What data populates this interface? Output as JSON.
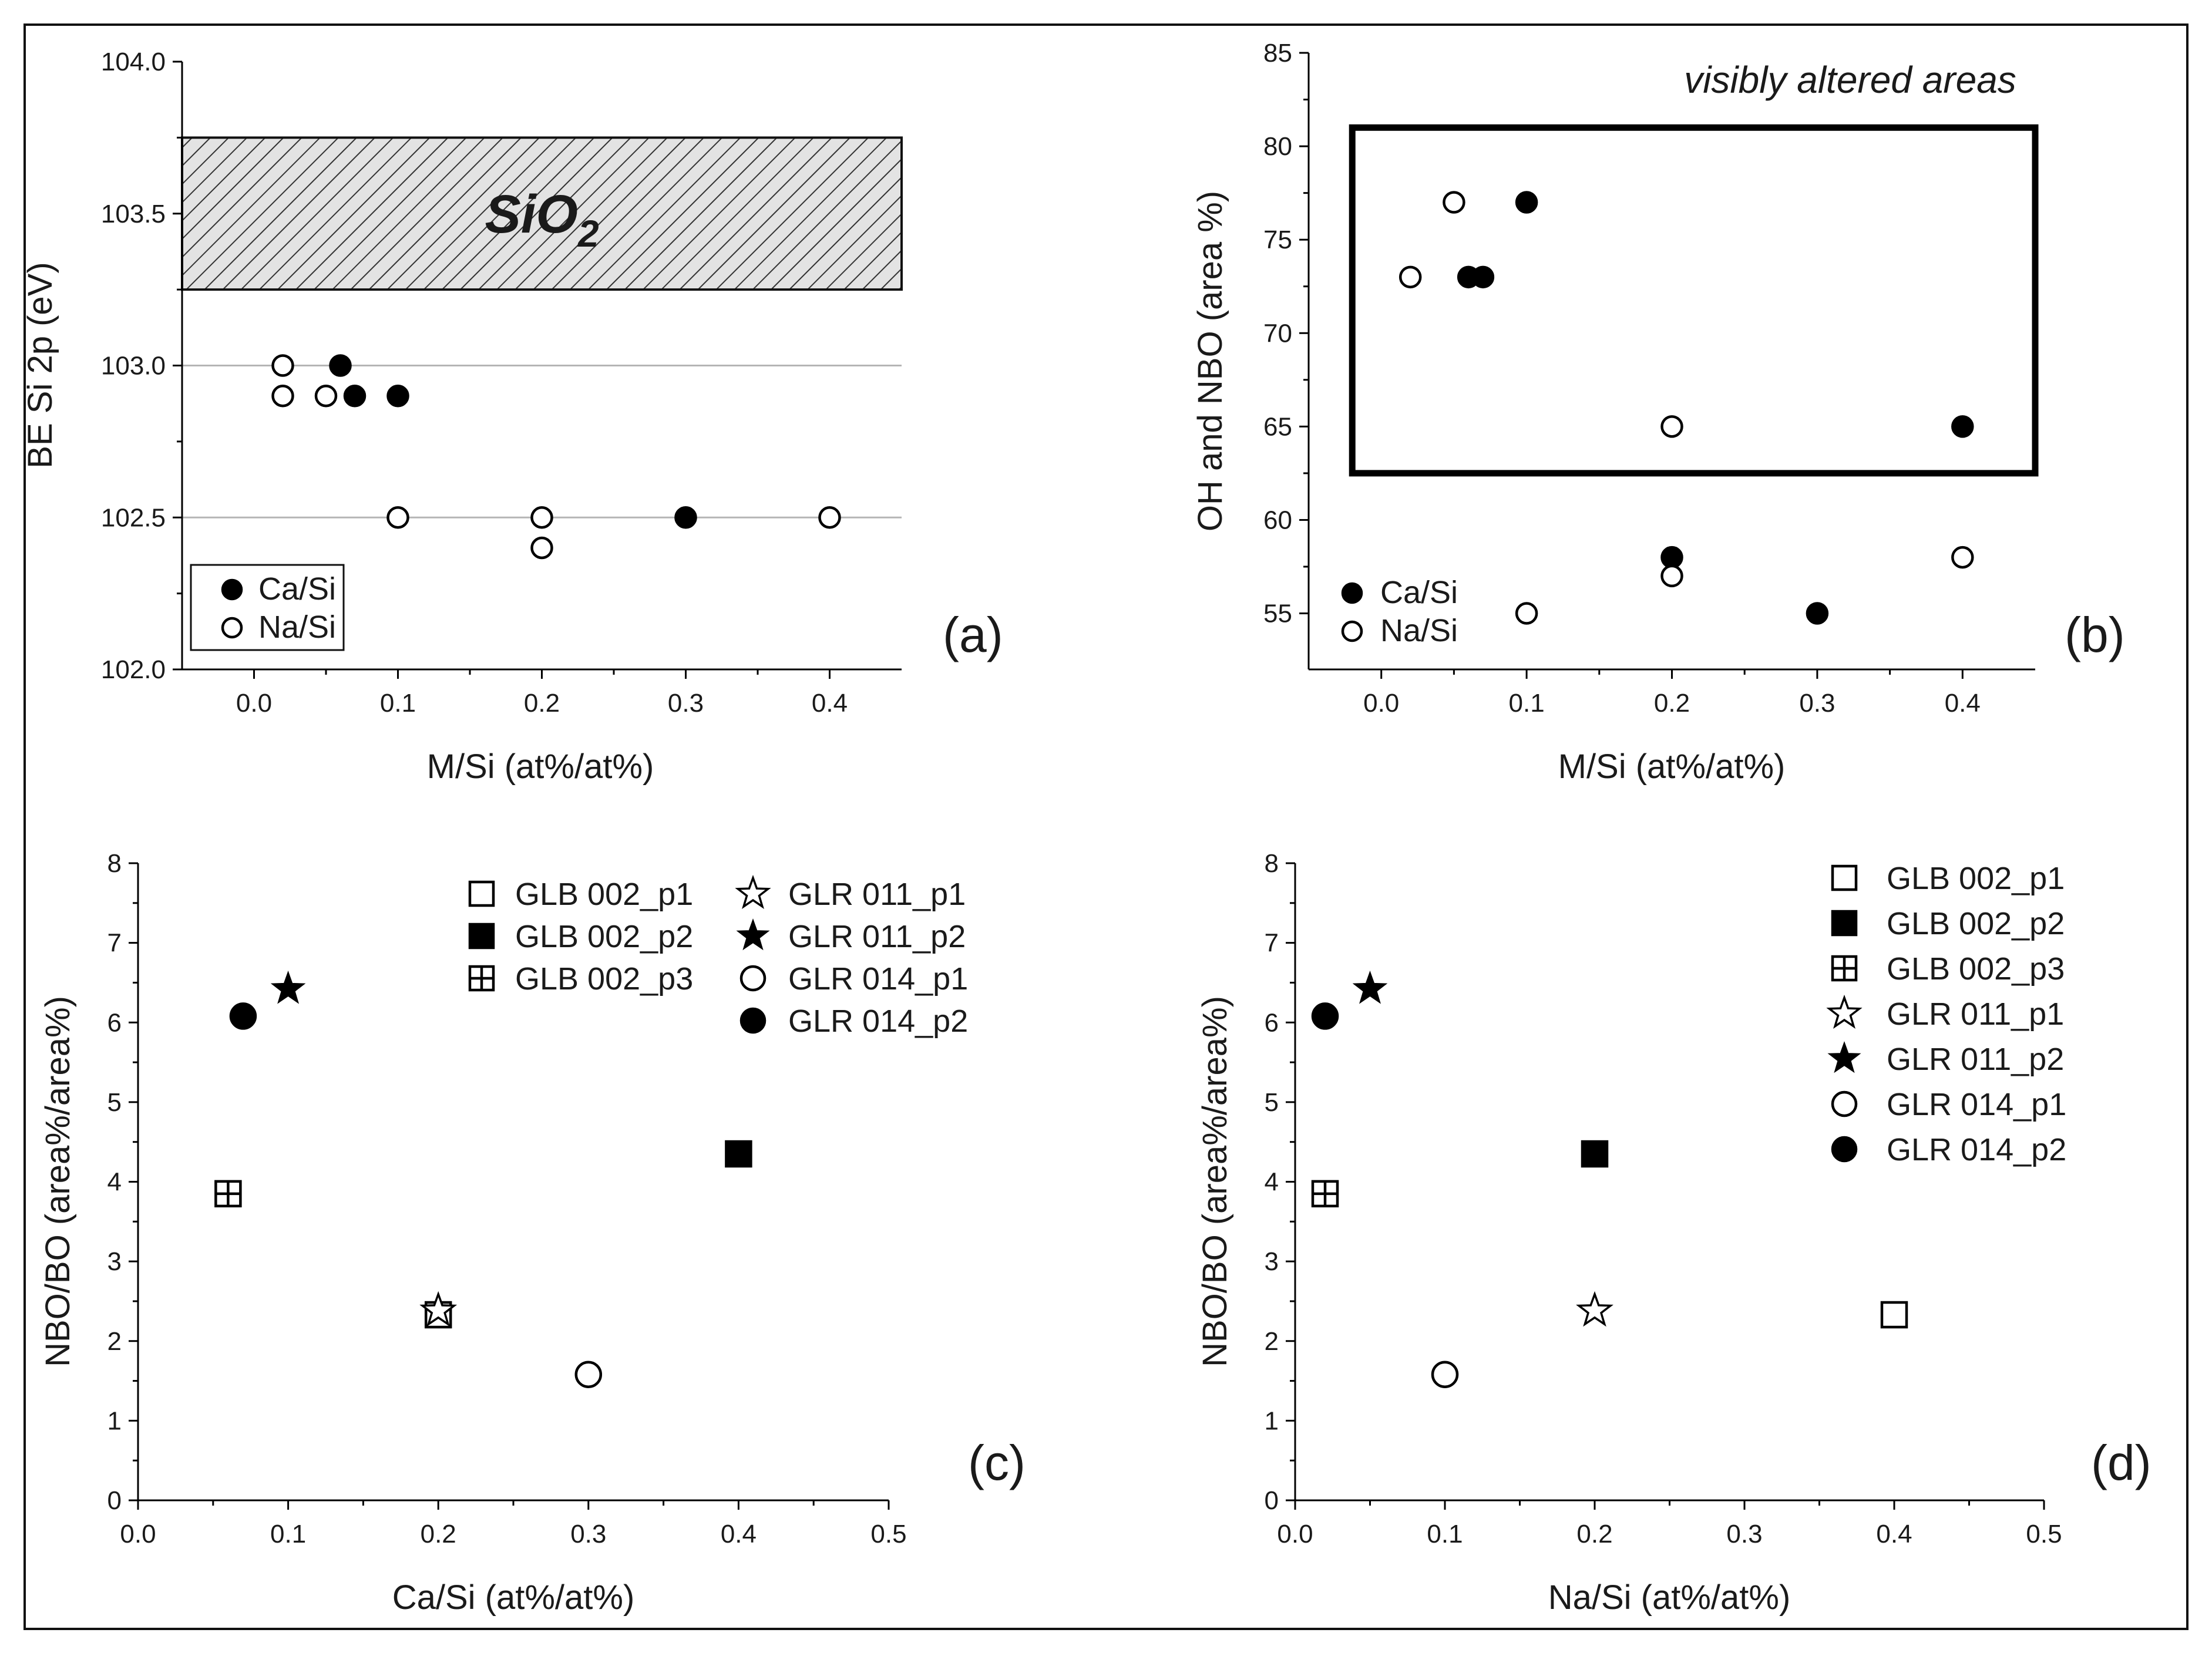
{
  "chart_data": [
    {
      "panel": "(a)",
      "type": "scatter",
      "xlabel": "M/Si (at%/at%)",
      "ylabel": "BE Si 2p (eV)",
      "xlim": [
        -0.05,
        0.45
      ],
      "ylim": [
        102.0,
        104.0
      ],
      "x_ticks": [
        "0.0",
        "0.1",
        "0.2",
        "0.3",
        "0.4"
      ],
      "y_ticks": [
        "102.0",
        "102.5",
        "103.0",
        "103.5",
        "104.0"
      ],
      "reference_lines": [
        102.5,
        103.0
      ],
      "band": {
        "label_main": "SiO",
        "label_sub": "2",
        "from": 103.25,
        "to": 103.75
      },
      "series": [
        {
          "name": "Ca/Si",
          "marker": "filled-circle",
          "x": [
            0.06,
            0.07,
            0.1,
            0.3
          ],
          "y": [
            103.0,
            102.9,
            102.9,
            102.5
          ]
        },
        {
          "name": "Na/Si",
          "marker": "open-circle",
          "x": [
            0.02,
            0.02,
            0.05,
            0.1,
            0.2,
            0.2,
            0.4
          ],
          "y": [
            103.0,
            102.9,
            102.9,
            102.5,
            102.5,
            102.4,
            102.5
          ]
        }
      ]
    },
    {
      "panel": "(b)",
      "type": "scatter",
      "xlabel": "M/Si (at%/at%)",
      "ylabel": "OH and NBO (area %)",
      "xlim": [
        -0.05,
        0.45
      ],
      "ylim": [
        52,
        85
      ],
      "x_ticks": [
        "0.0",
        "0.1",
        "0.2",
        "0.3",
        "0.4"
      ],
      "y_ticks": [
        "55",
        "60",
        "65",
        "70",
        "75",
        "80",
        "85"
      ],
      "box_annotation": {
        "text": "visibly altered areas",
        "x_from": -0.02,
        "x_to": 0.45,
        "y_from": 62.5,
        "y_to": 81.0
      },
      "series": [
        {
          "name": "Ca/Si",
          "marker": "filled-circle",
          "x": [
            0.06,
            0.07,
            0.1,
            0.4,
            0.2,
            0.3
          ],
          "y": [
            73,
            73,
            77,
            65,
            58,
            55
          ]
        },
        {
          "name": "Na/Si",
          "marker": "open-circle",
          "x": [
            0.02,
            0.05,
            0.2,
            0.1,
            0.2,
            0.4
          ],
          "y": [
            73,
            77,
            65,
            55,
            57,
            58
          ]
        }
      ]
    },
    {
      "panel": "(c)",
      "type": "scatter",
      "xlabel": "Ca/Si (at%/at%)",
      "ylabel": "NBO/BO (area%/area%)",
      "xlim": [
        0,
        0.5
      ],
      "ylim": [
        0,
        8
      ],
      "x_ticks": [
        "0.0",
        "0.1",
        "0.2",
        "0.3",
        "0.4",
        "0.5"
      ],
      "y_ticks": [
        "0",
        "1",
        "2",
        "3",
        "4",
        "5",
        "6",
        "7",
        "8"
      ],
      "series": [
        {
          "name": "GLB 002_p1",
          "marker": "open-square",
          "x": 0.2,
          "y": 2.33
        },
        {
          "name": "GLB 002_p2",
          "marker": "filled-square",
          "x": 0.4,
          "y": 4.35
        },
        {
          "name": "GLB 002_p3",
          "marker": "crossed-square",
          "x": 0.06,
          "y": 3.85
        },
        {
          "name": "GLR 011_p1",
          "marker": "open-star",
          "x": 0.2,
          "y": 2.38
        },
        {
          "name": "GLR 011_p2",
          "marker": "filled-star",
          "x": 0.1,
          "y": 6.42
        },
        {
          "name": "GLR 014_p1",
          "marker": "open-circle",
          "x": 0.3,
          "y": 1.58
        },
        {
          "name": "GLR 014_p2",
          "marker": "filled-circle",
          "x": 0.07,
          "y": 6.08
        }
      ]
    },
    {
      "panel": "(d)",
      "type": "scatter",
      "xlabel": "Na/Si (at%/at%)",
      "ylabel": "NBO/BO (area%/area%)",
      "xlim": [
        0,
        0.5
      ],
      "ylim": [
        0,
        8
      ],
      "x_ticks": [
        "0.0",
        "0.1",
        "0.2",
        "0.3",
        "0.4",
        "0.5"
      ],
      "y_ticks": [
        "0",
        "1",
        "2",
        "3",
        "4",
        "5",
        "6",
        "7",
        "8"
      ],
      "series": [
        {
          "name": "GLB 002_p1",
          "marker": "open-square",
          "x": 0.4,
          "y": 2.33
        },
        {
          "name": "GLB 002_p2",
          "marker": "filled-square",
          "x": 0.2,
          "y": 4.35
        },
        {
          "name": "GLB 002_p3",
          "marker": "crossed-square",
          "x": 0.02,
          "y": 3.85
        },
        {
          "name": "GLR 011_p1",
          "marker": "open-star",
          "x": 0.2,
          "y": 2.38
        },
        {
          "name": "GLR 011_p2",
          "marker": "filled-star",
          "x": 0.05,
          "y": 6.42
        },
        {
          "name": "GLR 014_p1",
          "marker": "open-circle",
          "x": 0.1,
          "y": 1.58
        },
        {
          "name": "GLR 014_p2",
          "marker": "filled-circle",
          "x": 0.02,
          "y": 6.08
        }
      ]
    }
  ]
}
